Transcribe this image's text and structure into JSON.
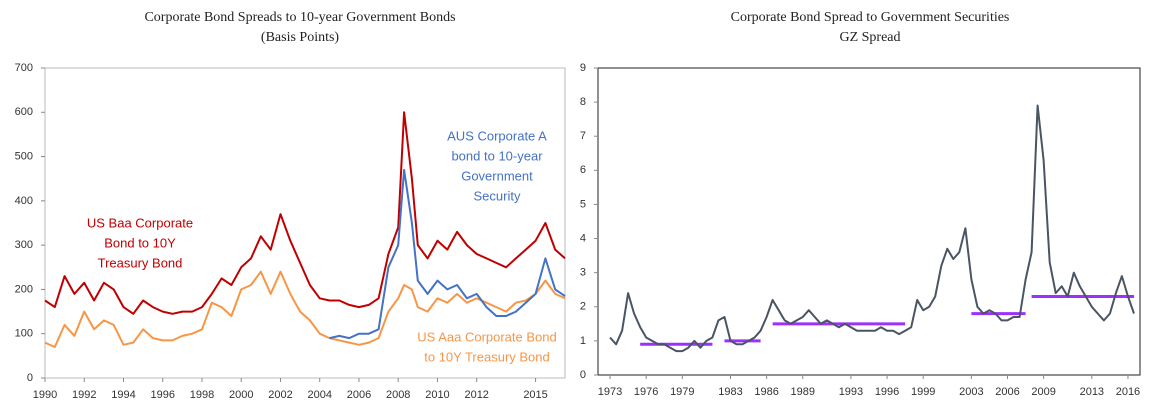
{
  "chart_data": [
    {
      "type": "line",
      "title": "Corporate Bond Spreads to 10-year Government Bonds",
      "subtitle": "(Basis Points)",
      "x": [
        1990,
        1990.5,
        1991,
        1991.5,
        1992,
        1992.5,
        1993,
        1993.5,
        1994,
        1994.5,
        1995,
        1995.5,
        1996,
        1996.5,
        1997,
        1997.5,
        1998,
        1998.5,
        1999,
        1999.5,
        2000,
        2000.5,
        2001,
        2001.5,
        2002,
        2002.5,
        2003,
        2003.5,
        2004,
        2004.5,
        2005,
        2005.5,
        2006,
        2006.5,
        2007,
        2007.5,
        2008,
        2008.3,
        2008.7,
        2009,
        2009.5,
        2010,
        2010.5,
        2011,
        2011.5,
        2012,
        2012.5,
        2013,
        2013.5,
        2014,
        2014.5,
        2015,
        2015.5,
        2016,
        2016.5
      ],
      "series": [
        {
          "name": "US Baa Corporate Bond to 10Y Treasury Bond",
          "color": "#c00000",
          "values": [
            175,
            160,
            230,
            190,
            215,
            175,
            215,
            200,
            160,
            145,
            175,
            160,
            150,
            145,
            150,
            150,
            160,
            190,
            225,
            210,
            250,
            270,
            320,
            290,
            370,
            310,
            260,
            210,
            180,
            175,
            175,
            165,
            160,
            165,
            180,
            280,
            340,
            600,
            450,
            300,
            270,
            310,
            290,
            330,
            300,
            280,
            270,
            260,
            250,
            270,
            290,
            310,
            350,
            290,
            270
          ]
        },
        {
          "name": "US Aaa Corporate Bond to 10Y Treasury Bond",
          "color": "#f79646",
          "values": [
            80,
            70,
            120,
            95,
            150,
            110,
            130,
            120,
            75,
            80,
            110,
            90,
            85,
            85,
            95,
            100,
            110,
            170,
            160,
            140,
            200,
            210,
            240,
            190,
            240,
            190,
            150,
            130,
            100,
            90,
            85,
            80,
            75,
            80,
            90,
            150,
            180,
            210,
            200,
            160,
            150,
            180,
            170,
            190,
            170,
            180,
            170,
            160,
            150,
            170,
            175,
            190,
            220,
            190,
            180
          ]
        },
        {
          "name": "AUS Corporate A bond to 10-year Government Security",
          "color": "#4472c4",
          "values": [
            null,
            null,
            null,
            null,
            null,
            null,
            null,
            null,
            null,
            null,
            null,
            null,
            null,
            null,
            null,
            null,
            null,
            null,
            null,
            null,
            null,
            null,
            null,
            null,
            null,
            null,
            null,
            null,
            null,
            90,
            95,
            90,
            100,
            100,
            110,
            250,
            300,
            470,
            350,
            220,
            190,
            220,
            200,
            210,
            180,
            190,
            160,
            140,
            140,
            150,
            170,
            190,
            270,
            200,
            185
          ]
        }
      ],
      "annotations": [
        {
          "lines": [
            "US Baa Corporate",
            "Bond to 10Y",
            "Treasury Bond"
          ],
          "color": "#c00000"
        },
        {
          "lines": [
            "AUS Corporate A",
            "bond to 10-year",
            "Government",
            "Security"
          ],
          "color": "#4472c4"
        },
        {
          "lines": [
            "US Aaa Corporate Bond",
            "to 10Y Treasury Bond"
          ],
          "color": "#f79646"
        }
      ],
      "xlim": [
        1990,
        2016.5
      ],
      "xticks": [
        1990,
        1992,
        1994,
        1996,
        1998,
        2000,
        2002,
        2004,
        2006,
        2008,
        2010,
        2012,
        2015
      ],
      "ylim": [
        0,
        700
      ],
      "yticks": [
        0,
        100,
        200,
        300,
        400,
        500,
        600,
        700
      ]
    },
    {
      "type": "line",
      "title": "Corporate Bond Spread to Government Securities",
      "subtitle": "GZ Spread",
      "x": [
        1973,
        1973.5,
        1974,
        1974.5,
        1975,
        1975.5,
        1976,
        1976.5,
        1977,
        1977.5,
        1978,
        1978.5,
        1979,
        1979.5,
        1980,
        1980.5,
        1981,
        1981.5,
        1982,
        1982.5,
        1983,
        1983.5,
        1984,
        1984.5,
        1985,
        1985.5,
        1986,
        1986.5,
        1987,
        1987.5,
        1988,
        1988.5,
        1989,
        1989.5,
        1990,
        1990.5,
        1991,
        1991.5,
        1992,
        1992.5,
        1993,
        1993.5,
        1994,
        1994.5,
        1995,
        1995.5,
        1996,
        1996.5,
        1997,
        1997.5,
        1998,
        1998.5,
        1999,
        1999.5,
        2000,
        2000.5,
        2001,
        2001.5,
        2002,
        2002.5,
        2003,
        2003.5,
        2004,
        2004.5,
        2005,
        2005.5,
        2006,
        2006.5,
        2007,
        2007.5,
        2008,
        2008.5,
        2009,
        2009.5,
        2010,
        2010.5,
        2011,
        2011.5,
        2012,
        2012.5,
        2013,
        2013.5,
        2014,
        2014.5,
        2015,
        2015.5,
        2016,
        2016.5
      ],
      "series": [
        {
          "name": "GZ Spread",
          "color": "#4a5563",
          "values": [
            1.1,
            0.9,
            1.3,
            2.4,
            1.8,
            1.4,
            1.1,
            1.0,
            0.9,
            0.9,
            0.8,
            0.7,
            0.7,
            0.8,
            1.0,
            0.8,
            1.0,
            1.1,
            1.6,
            1.7,
            1.0,
            0.9,
            0.9,
            1.0,
            1.1,
            1.3,
            1.7,
            2.2,
            1.9,
            1.6,
            1.5,
            1.6,
            1.7,
            1.9,
            1.7,
            1.5,
            1.6,
            1.5,
            1.4,
            1.5,
            1.4,
            1.3,
            1.3,
            1.3,
            1.3,
            1.4,
            1.3,
            1.3,
            1.2,
            1.3,
            1.4,
            2.2,
            1.9,
            2.0,
            2.3,
            3.2,
            3.7,
            3.4,
            3.6,
            4.3,
            2.8,
            2.0,
            1.8,
            1.9,
            1.8,
            1.6,
            1.6,
            1.7,
            1.7,
            2.8,
            3.6,
            7.9,
            6.3,
            3.3,
            2.4,
            2.6,
            2.3,
            3.0,
            2.6,
            2.3,
            2.0,
            1.8,
            1.6,
            1.8,
            2.4,
            2.9,
            2.3,
            1.8
          ]
        }
      ],
      "segments_color": "#9b30ff",
      "segments": [
        {
          "x": [
            1975.5,
            1981.5
          ],
          "value": 0.9
        },
        {
          "x": [
            1982.5,
            1985.5
          ],
          "value": 1.0
        },
        {
          "x": [
            1986.5,
            1997.5
          ],
          "value": 1.5
        },
        {
          "x": [
            2003,
            2007.5
          ],
          "value": 1.8
        },
        {
          "x": [
            2008,
            2016.5
          ],
          "value": 2.3
        }
      ],
      "xlim": [
        1972,
        2017
      ],
      "xticks": [
        1973,
        1976,
        1979,
        1983,
        1986,
        1989,
        1993,
        1996,
        1999,
        2003,
        2006,
        2009,
        2013,
        2016
      ],
      "ylim": [
        0,
        9
      ],
      "yticks": [
        0,
        1,
        2,
        3,
        4,
        5,
        6,
        7,
        8,
        9
      ]
    }
  ]
}
